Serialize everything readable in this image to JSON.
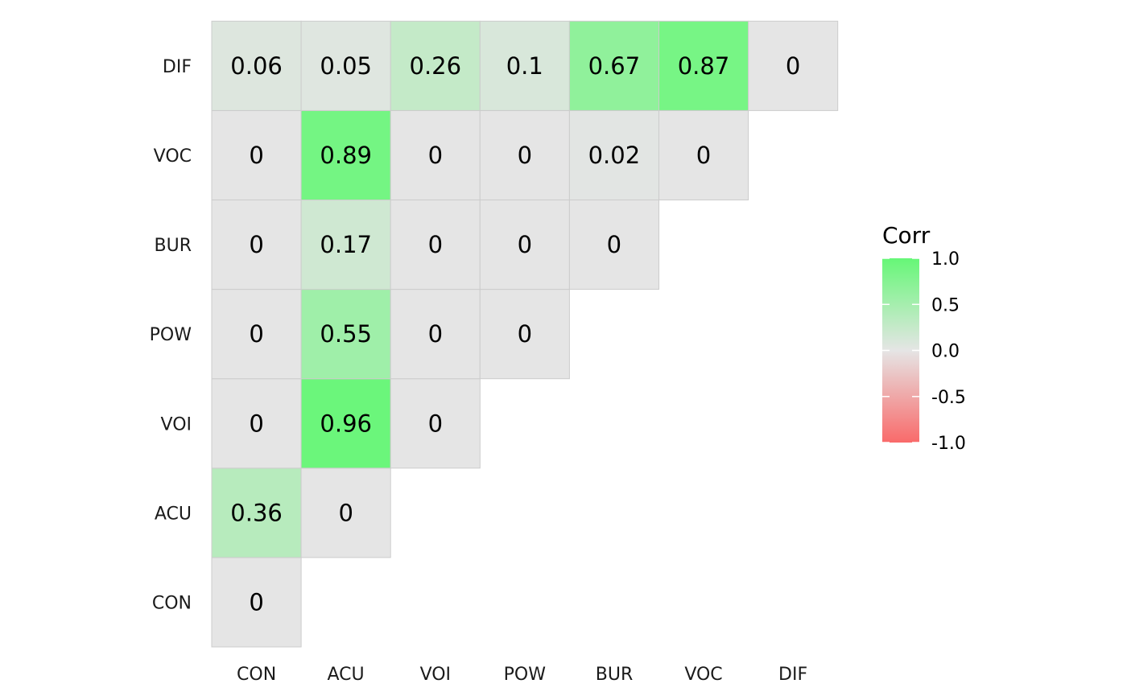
{
  "chart_data": {
    "type": "heatmap",
    "variables": [
      "CON",
      "ACU",
      "VOI",
      "POW",
      "BUR",
      "VOC",
      "DIF"
    ],
    "x_tick_labels": [
      "CON",
      "ACU",
      "VOI",
      "POW",
      "BUR",
      "VOC",
      "DIF"
    ],
    "y_tick_labels": [
      "CON",
      "ACU",
      "VOI",
      "POW",
      "BUR",
      "VOC",
      "DIF"
    ],
    "cells": [
      {
        "x": "CON",
        "y": "CON",
        "value": 0,
        "label": "0"
      },
      {
        "x": "CON",
        "y": "ACU",
        "value": 0.36,
        "label": "0.36"
      },
      {
        "x": "ACU",
        "y": "ACU",
        "value": 0,
        "label": "0"
      },
      {
        "x": "CON",
        "y": "VOI",
        "value": 0,
        "label": "0"
      },
      {
        "x": "ACU",
        "y": "VOI",
        "value": 0.96,
        "label": "0.96"
      },
      {
        "x": "VOI",
        "y": "VOI",
        "value": 0,
        "label": "0"
      },
      {
        "x": "CON",
        "y": "POW",
        "value": 0,
        "label": "0"
      },
      {
        "x": "ACU",
        "y": "POW",
        "value": 0.55,
        "label": "0.55"
      },
      {
        "x": "VOI",
        "y": "POW",
        "value": 0,
        "label": "0"
      },
      {
        "x": "POW",
        "y": "POW",
        "value": 0,
        "label": "0"
      },
      {
        "x": "CON",
        "y": "BUR",
        "value": 0,
        "label": "0"
      },
      {
        "x": "ACU",
        "y": "BUR",
        "value": 0.17,
        "label": "0.17"
      },
      {
        "x": "VOI",
        "y": "BUR",
        "value": 0,
        "label": "0"
      },
      {
        "x": "POW",
        "y": "BUR",
        "value": 0,
        "label": "0"
      },
      {
        "x": "BUR",
        "y": "BUR",
        "value": 0,
        "label": "0"
      },
      {
        "x": "CON",
        "y": "VOC",
        "value": 0,
        "label": "0"
      },
      {
        "x": "ACU",
        "y": "VOC",
        "value": 0.89,
        "label": "0.89"
      },
      {
        "x": "VOI",
        "y": "VOC",
        "value": 0,
        "label": "0"
      },
      {
        "x": "POW",
        "y": "VOC",
        "value": 0,
        "label": "0"
      },
      {
        "x": "BUR",
        "y": "VOC",
        "value": 0.02,
        "label": "0.02"
      },
      {
        "x": "VOC",
        "y": "VOC",
        "value": 0,
        "label": "0"
      },
      {
        "x": "CON",
        "y": "DIF",
        "value": 0.06,
        "label": "0.06"
      },
      {
        "x": "ACU",
        "y": "DIF",
        "value": 0.05,
        "label": "0.05"
      },
      {
        "x": "VOI",
        "y": "DIF",
        "value": 0.26,
        "label": "0.26"
      },
      {
        "x": "POW",
        "y": "DIF",
        "value": 0.1,
        "label": "0.1"
      },
      {
        "x": "BUR",
        "y": "DIF",
        "value": 0.67,
        "label": "0.67"
      },
      {
        "x": "VOC",
        "y": "DIF",
        "value": 0.87,
        "label": "0.87"
      },
      {
        "x": "DIF",
        "y": "DIF",
        "value": 0,
        "label": "0"
      }
    ],
    "legend": {
      "title": "Corr",
      "placement": "right",
      "breaks": [
        1.0,
        0.5,
        0.0,
        -0.5,
        -1.0
      ],
      "break_labels": [
        "1.0",
        "0.5",
        "0.0",
        "-0.5",
        "-1.0"
      ],
      "limits": [
        -1,
        1
      ]
    },
    "colors": {
      "high": "#66F777",
      "mid": "#E5E5E5",
      "low": "#F96A6A",
      "cell_border": "#CCCCCC"
    },
    "grid": false
  }
}
